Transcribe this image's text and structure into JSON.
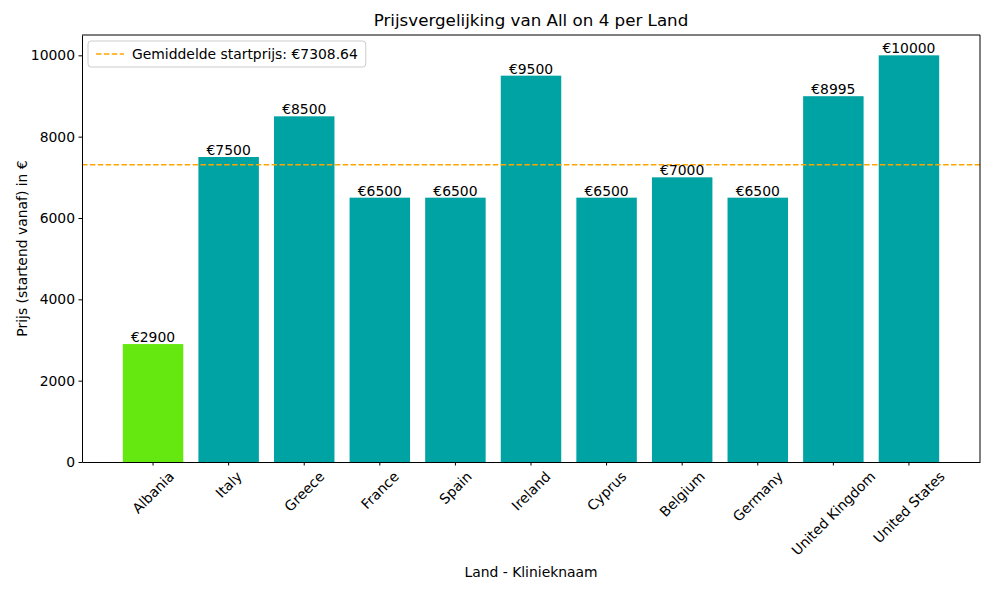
{
  "chart_data": {
    "type": "bar",
    "title": "Prijsvergelijking van All on 4 per Land",
    "x_label": "Land - Klinieknaam",
    "y_label": "Prijs (startend vanaf) in €",
    "categories": [
      "Albania",
      "Italy",
      "Greece",
      "France",
      "Spain",
      "Ireland",
      "Cyprus",
      "Belgium",
      "Germany",
      "United Kingdom",
      "United States"
    ],
    "values": [
      2900,
      7500,
      8500,
      6500,
      6500,
      9500,
      6500,
      7000,
      6500,
      8995,
      10000
    ],
    "value_labels": [
      "€2900",
      "€7500",
      "€8500",
      "€6500",
      "€6500",
      "€9500",
      "€6500",
      "€7000",
      "€6500",
      "€8995",
      "€10000"
    ],
    "colors": [
      "#64e80f",
      "#00a3a3",
      "#00a3a3",
      "#00a3a3",
      "#00a3a3",
      "#00a3a3",
      "#00a3a3",
      "#00a3a3",
      "#00a3a3",
      "#00a3a3",
      "#00a3a3"
    ],
    "data_labels": true,
    "ylim": [
      0,
      10500
    ],
    "yticks": [
      0,
      2000,
      4000,
      6000,
      8000,
      10000
    ],
    "grid": false,
    "legend": "upper left",
    "reference_line": {
      "value": 7308.64,
      "label": "Gemiddelde startprijs: €7308.64",
      "color": "orange",
      "line_style": "dashed"
    }
  }
}
